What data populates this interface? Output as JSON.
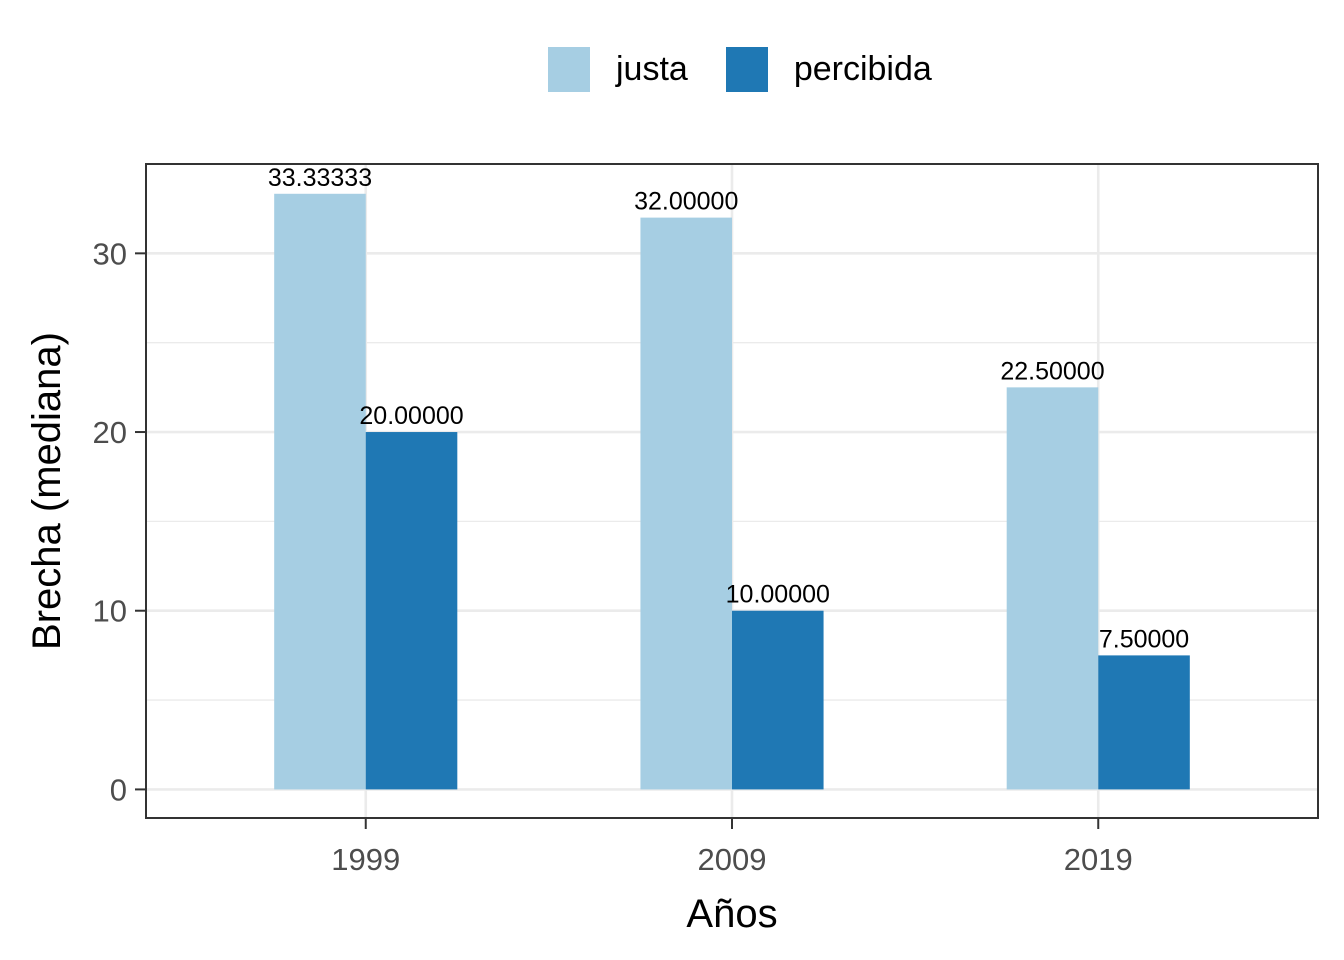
{
  "chart_data": {
    "type": "bar",
    "categories": [
      "1999",
      "2009",
      "2019"
    ],
    "series": [
      {
        "name": "justa",
        "values": [
          33.33333,
          32.0,
          22.5
        ],
        "labels": [
          "33.33333",
          "32.00000",
          "22.50000"
        ],
        "color": "#a6cee3"
      },
      {
        "name": "percibida",
        "values": [
          20.0,
          10.0,
          7.5
        ],
        "labels": [
          "20.00000",
          "10.00000",
          "7.50000"
        ],
        "color": "#1f78b4"
      }
    ],
    "xlabel": "Años",
    "ylabel": "Brecha (mediana)",
    "ylim": [
      -1.6,
      35
    ],
    "yticks": [
      0,
      10,
      20,
      30
    ],
    "ytick_labels": [
      "0",
      "10",
      "20",
      "30"
    ],
    "grid": true,
    "legend_position": "top"
  }
}
